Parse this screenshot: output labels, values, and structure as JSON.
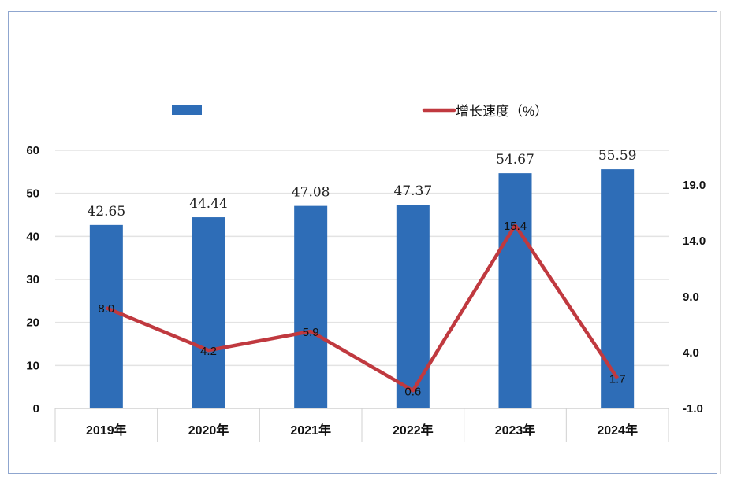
{
  "chart_data": {
    "type": "bar+line",
    "categories": [
      "2019年",
      "2020年",
      "2021年",
      "2022年",
      "2023年",
      "2024年"
    ],
    "series": [
      {
        "name": "",
        "type": "bar",
        "axis": "left",
        "values": [
          42.65,
          44.44,
          47.08,
          47.37,
          54.67,
          55.59
        ],
        "labels": [
          "42.65",
          "44.44",
          "47.08",
          "47.37",
          "54.67",
          "55.59"
        ],
        "color": "#2e6db7"
      },
      {
        "name": "增长速度（%）",
        "type": "line",
        "axis": "right",
        "values": [
          8.0,
          4.2,
          5.9,
          0.6,
          15.4,
          1.7
        ],
        "labels": [
          "8.0",
          "4.2",
          "5.9",
          "0.6",
          "15.4",
          "1.7"
        ],
        "color": "#c0393f"
      }
    ],
    "left_axis": {
      "ticks": [
        "0",
        "10",
        "20",
        "30",
        "40",
        "50",
        "60"
      ],
      "range": [
        0,
        60
      ]
    },
    "right_axis": {
      "ticks": [
        "-1.0",
        "4.0",
        "9.0",
        "14.0",
        "19.0"
      ],
      "range": [
        -1,
        22.1
      ]
    },
    "legend": "top",
    "grid": true,
    "title": "",
    "xlabel": "",
    "ylabel": ""
  }
}
